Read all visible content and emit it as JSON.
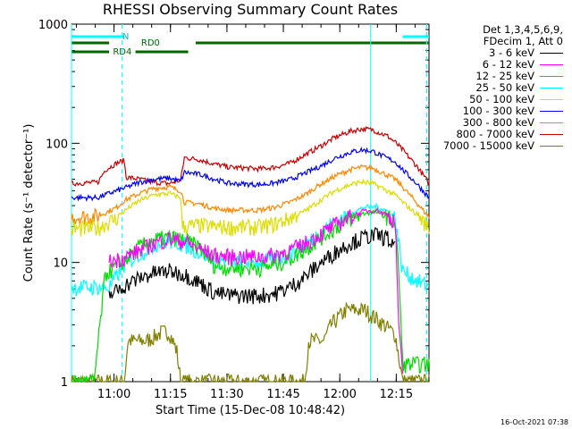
{
  "chart_data": {
    "type": "line",
    "title": "RHESSI Observing Summary Count Rates",
    "xlabel": "Start Time (15-Dec-08 10:48:42)",
    "ylabel": "Count Rate (s⁻¹ detector⁻¹)",
    "yscale": "log",
    "ylim": [
      1,
      1000
    ],
    "xlim_minutes": [
      0,
      95
    ],
    "x_unit": "minutes after 10:48:42",
    "x_ticks": [
      {
        "m": 11.3,
        "label": "11:00"
      },
      {
        "m": 26.3,
        "label": "11:15"
      },
      {
        "m": 41.3,
        "label": "11:30"
      },
      {
        "m": 56.3,
        "label": "11:45"
      },
      {
        "m": 71.3,
        "label": "12:00"
      },
      {
        "m": 86.3,
        "label": "12:15"
      }
    ],
    "y_ticks": [
      {
        "v": 1,
        "label": "1"
      },
      {
        "v": 10,
        "label": "10"
      },
      {
        "v": 100,
        "label": "100"
      },
      {
        "v": 1000,
        "label": "1000"
      }
    ],
    "legend": {
      "header": [
        "Det 1,3,4,5,6,9,",
        "FDecim 1, Att 0"
      ],
      "placement": "right"
    },
    "series": [
      {
        "name": "3 - 6 keV",
        "color": "#000000",
        "gap": [
          0,
          10
        ],
        "points": [
          [
            10,
            5.3
          ],
          [
            14,
            6.4
          ],
          [
            18,
            7.4
          ],
          [
            22,
            8.2
          ],
          [
            26,
            8.5
          ],
          [
            30,
            8.0
          ],
          [
            34,
            6.8
          ],
          [
            38,
            5.6
          ],
          [
            42,
            5.3
          ],
          [
            50,
            5.3
          ],
          [
            54,
            5.5
          ],
          [
            58,
            6.2
          ],
          [
            62,
            7.6
          ],
          [
            66,
            9.8
          ],
          [
            70,
            12.2
          ],
          [
            74,
            14.6
          ],
          [
            78,
            16.4
          ],
          [
            81,
            17.0
          ],
          [
            84,
            16.0
          ],
          [
            86,
            13.0
          ]
        ]
      },
      {
        "name": "6 - 12 keV",
        "color": "#ff00ff",
        "gap": [
          0,
          10
        ],
        "points": [
          [
            10,
            10.2
          ],
          [
            14,
            11.0
          ],
          [
            18,
            12.6
          ],
          [
            22,
            14.5
          ],
          [
            26,
            15.8
          ],
          [
            30,
            15.0
          ],
          [
            34,
            13.0
          ],
          [
            38,
            11.5
          ],
          [
            42,
            11.2
          ],
          [
            50,
            11.2
          ],
          [
            54,
            11.6
          ],
          [
            58,
            12.6
          ],
          [
            62,
            14.4
          ],
          [
            66,
            17.2
          ],
          [
            70,
            20.5
          ],
          [
            74,
            24.2
          ],
          [
            78,
            27.0
          ],
          [
            81,
            27.5
          ],
          [
            84,
            25.0
          ],
          [
            86,
            22.0
          ],
          [
            87,
            3.0
          ],
          [
            88,
            1.05
          ]
        ]
      },
      {
        "name": "12 - 25 keV",
        "color": "#00dd00",
        "points": [
          [
            0,
            1.0
          ],
          [
            6,
            1.0
          ],
          [
            9,
            8.0
          ],
          [
            14,
            10.3
          ],
          [
            18,
            13.5
          ],
          [
            22,
            15.5
          ],
          [
            26,
            16.3
          ],
          [
            30,
            15.5
          ],
          [
            34,
            13.5
          ],
          [
            38,
            9.5
          ],
          [
            42,
            9.0
          ],
          [
            50,
            9.0
          ],
          [
            54,
            9.5
          ],
          [
            58,
            10.8
          ],
          [
            62,
            12.8
          ],
          [
            66,
            16.0
          ],
          [
            70,
            19.5
          ],
          [
            74,
            23.0
          ],
          [
            78,
            26.0
          ],
          [
            81,
            26.5
          ],
          [
            84,
            24.0
          ],
          [
            86,
            21.0
          ],
          [
            87,
            8.0
          ],
          [
            88,
            1.4
          ],
          [
            95,
            1.4
          ]
        ]
      },
      {
        "name": "25 - 50 keV",
        "color": "#00ffff",
        "points": [
          [
            0,
            6.2
          ],
          [
            10,
            6.2
          ],
          [
            14,
            9.5
          ],
          [
            18,
            11.8
          ],
          [
            22,
            14.2
          ],
          [
            26,
            15.2
          ],
          [
            30,
            14.2
          ],
          [
            34,
            12.2
          ],
          [
            38,
            10.6
          ],
          [
            42,
            10.2
          ],
          [
            50,
            10.2
          ],
          [
            54,
            10.6
          ],
          [
            58,
            11.9
          ],
          [
            62,
            14.0
          ],
          [
            66,
            17.8
          ],
          [
            70,
            22.0
          ],
          [
            74,
            26.0
          ],
          [
            78,
            29.0
          ],
          [
            81,
            29.5
          ],
          [
            84,
            27.0
          ],
          [
            86,
            24.0
          ],
          [
            88,
            8.5
          ],
          [
            92,
            7.0
          ],
          [
            95,
            6.3
          ]
        ]
      },
      {
        "name": "50 - 100 keV",
        "color": "#dddd00",
        "points": [
          [
            0,
            19.0
          ],
          [
            7,
            19.5
          ],
          [
            10,
            22.0
          ],
          [
            12,
            23.5
          ],
          [
            14,
            27.0
          ],
          [
            18,
            33.0
          ],
          [
            22,
            37.0
          ],
          [
            26,
            38.0
          ],
          [
            29,
            35.0
          ],
          [
            29.5,
            20.0
          ],
          [
            34,
            20.5
          ],
          [
            38,
            20.0
          ],
          [
            42,
            19.8
          ],
          [
            50,
            19.8
          ],
          [
            54,
            21.0
          ],
          [
            58,
            23.5
          ],
          [
            62,
            27.0
          ],
          [
            66,
            33.0
          ],
          [
            70,
            40.0
          ],
          [
            74,
            45.0
          ],
          [
            77,
            47.5
          ],
          [
            80,
            46.0
          ],
          [
            82,
            43.0
          ],
          [
            86,
            37.0
          ],
          [
            88,
            32.0
          ],
          [
            92,
            25.0
          ],
          [
            95,
            19.5
          ]
        ]
      },
      {
        "name": "100 - 300 keV",
        "color": "#0000ff",
        "points": [
          [
            0,
            35.0
          ],
          [
            7,
            35.0
          ],
          [
            10,
            38.0
          ],
          [
            12,
            40.0
          ],
          [
            14,
            42.0
          ],
          [
            18,
            47.0
          ],
          [
            22,
            50.0
          ],
          [
            26,
            51.0
          ],
          [
            29,
            48.0
          ],
          [
            30,
            57.0
          ],
          [
            34,
            55.0
          ],
          [
            38,
            50.0
          ],
          [
            42,
            46.0
          ],
          [
            50,
            45.0
          ],
          [
            54,
            46.5
          ],
          [
            58,
            49.5
          ],
          [
            62,
            56.0
          ],
          [
            66,
            64.0
          ],
          [
            70,
            75.0
          ],
          [
            74,
            84.0
          ],
          [
            77,
            88.0
          ],
          [
            80,
            86.0
          ],
          [
            82,
            80.0
          ],
          [
            86,
            70.0
          ],
          [
            88,
            60.0
          ],
          [
            92,
            45.0
          ],
          [
            95,
            35.0
          ]
        ]
      },
      {
        "name": "300 - 800 keV",
        "color": "#ff8800",
        "points": [
          [
            0,
            24.0
          ],
          [
            7,
            24.5
          ],
          [
            10,
            27.0
          ],
          [
            12,
            29.0
          ],
          [
            14,
            33.0
          ],
          [
            18,
            38.0
          ],
          [
            22,
            42.0
          ],
          [
            26,
            43.0
          ],
          [
            29,
            40.0
          ],
          [
            30,
            32.0
          ],
          [
            34,
            31.0
          ],
          [
            38,
            28.5
          ],
          [
            42,
            27.5
          ],
          [
            50,
            27.5
          ],
          [
            54,
            29.0
          ],
          [
            58,
            32.0
          ],
          [
            62,
            37.0
          ],
          [
            66,
            45.0
          ],
          [
            70,
            53.0
          ],
          [
            74,
            60.0
          ],
          [
            77,
            63.0
          ],
          [
            80,
            62.0
          ],
          [
            82,
            58.0
          ],
          [
            86,
            50.0
          ],
          [
            88,
            43.0
          ],
          [
            92,
            31.0
          ],
          [
            95,
            24.0
          ]
        ]
      },
      {
        "name": "800 - 7000 keV",
        "color": "#cc0000",
        "points": [
          [
            0,
            46.0
          ],
          [
            7,
            47.0
          ],
          [
            9,
            60.0
          ],
          [
            12,
            68.0
          ],
          [
            14,
            72.0
          ],
          [
            14.5,
            52.0
          ],
          [
            18,
            50.0
          ],
          [
            22,
            47.0
          ],
          [
            26,
            46.0
          ],
          [
            29,
            49.0
          ],
          [
            30,
            76.0
          ],
          [
            34,
            73.0
          ],
          [
            38,
            67.0
          ],
          [
            42,
            63.0
          ],
          [
            50,
            61.0
          ],
          [
            54,
            63.0
          ],
          [
            58,
            68.0
          ],
          [
            62,
            80.0
          ],
          [
            66,
            94.0
          ],
          [
            70,
            112.0
          ],
          [
            74,
            126.0
          ],
          [
            77,
            132.0
          ],
          [
            80,
            130.0
          ],
          [
            82,
            122.0
          ],
          [
            84,
            115.0
          ],
          [
            86,
            102.0
          ],
          [
            88,
            88.0
          ],
          [
            92,
            63.0
          ],
          [
            95,
            46.0
          ]
        ]
      },
      {
        "name": "7000 - 15000 keV",
        "color": "#808000",
        "points": [
          [
            0,
            1.0
          ],
          [
            14,
            1.0
          ],
          [
            15,
            2.2
          ],
          [
            20,
            2.2
          ],
          [
            24,
            2.6
          ],
          [
            26,
            2.6
          ],
          [
            28,
            1.8
          ],
          [
            29,
            1.0
          ],
          [
            62,
            1.0
          ],
          [
            63,
            2.2
          ],
          [
            67,
            2.2
          ],
          [
            69,
            3.0
          ],
          [
            73,
            4.0
          ],
          [
            78,
            4.0
          ],
          [
            82,
            3.2
          ],
          [
            86,
            2.5
          ],
          [
            87,
            1.6
          ],
          [
            88,
            1.0
          ],
          [
            95,
            1.0
          ]
        ]
      }
    ],
    "segments": {
      "saa_label": "N",
      "rd0_label": "RD0",
      "rd4_label": "RD4",
      "saa_intervals": [
        [
          0,
          14
        ],
        [
          88,
          95
        ]
      ],
      "rd0_intervals": [
        [
          0,
          10
        ],
        [
          33,
          95
        ]
      ],
      "rd4_intervals": [
        [
          0,
          10
        ],
        [
          17,
          31
        ]
      ],
      "vline_solid": [
        0,
        79.5
      ],
      "vline_dashed": [
        13.4,
        94.4
      ]
    }
  },
  "timestamp": "16-Oct-2021 07:38"
}
